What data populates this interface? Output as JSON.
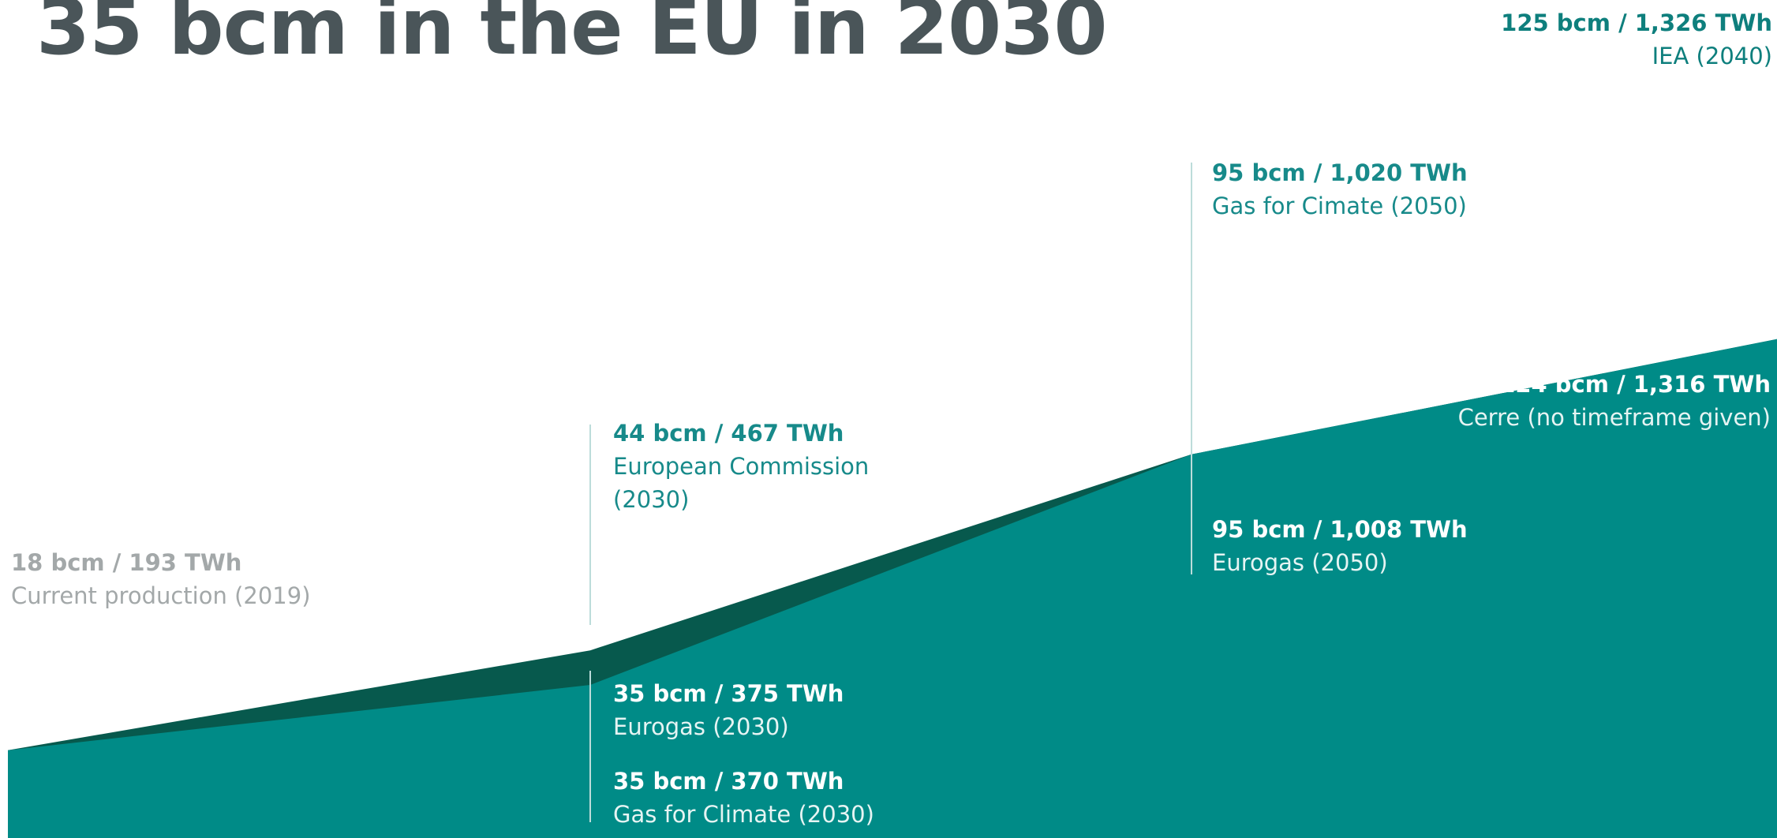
{
  "title": "35 bcm in the EU in 2030",
  "colors": {
    "area_main": "#008b87",
    "area_dark": "#07594d",
    "marker_line_light": "#bcdcda",
    "text_gray": "#a3a8a9",
    "text_teal": "#178a8a",
    "text_white": "#ffffff"
  },
  "chart_data": {
    "type": "area",
    "title": "35 bcm in the EU in 2030",
    "unit": "bcm",
    "series": [
      {
        "values": [
          18,
          35,
          95,
          125
        ]
      },
      {
        "values": [
          18,
          44,
          95,
          125
        ]
      }
    ],
    "annotations": [
      {
        "key": "current",
        "value_label": "18 bcm / 193 TWh",
        "source_label": "Current production (2019)",
        "bcm": 18,
        "twh": 193
      },
      {
        "key": "ec2030",
        "value_label": "44 bcm / 467 TWh",
        "source_label": "European Commission",
        "source_label_2": "(2030)",
        "bcm": 44,
        "twh": 467
      },
      {
        "key": "eurogas2030",
        "value_label": "35 bcm / 375 TWh",
        "source_label": "Eurogas (2030)",
        "bcm": 35,
        "twh": 375
      },
      {
        "key": "gfc2030",
        "value_label": "35 bcm / 370 TWh",
        "source_label": "Gas for Climate (2030)",
        "bcm": 35,
        "twh": 370
      },
      {
        "key": "gfc2050",
        "value_label": "95 bcm / 1,020 TWh",
        "source_label": "Gas for Cimate (2050)",
        "bcm": 95,
        "twh": 1020
      },
      {
        "key": "eurogas2050",
        "value_label": "95 bcm / 1,008 TWh",
        "source_label": "Eurogas (2050)",
        "bcm": 95,
        "twh": 1008
      },
      {
        "key": "iea2040",
        "value_label": "125 bcm / 1,326 TWh",
        "source_label": "IEA (2040)",
        "bcm": 125,
        "twh": 1326
      },
      {
        "key": "cerre",
        "value_label": "124 bcm / 1,316 TWh",
        "source_label": "Cerre (no timeframe given)",
        "bcm": 124,
        "twh": 1316
      }
    ],
    "grid": false,
    "legend": "none"
  }
}
